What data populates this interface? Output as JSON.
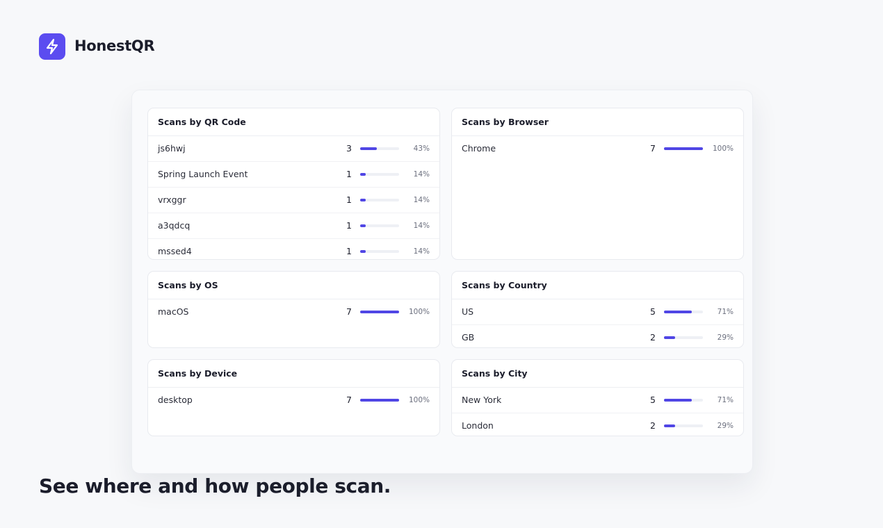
{
  "brand": {
    "name": "HonestQR"
  },
  "panels": [
    {
      "title": "Scans by QR Code",
      "rows": [
        {
          "label": "js6hwj",
          "count": 3,
          "percent": {
            "value": 43,
            "label": "43%"
          }
        },
        {
          "label": "Spring Launch Event",
          "count": 1,
          "percent": {
            "value": 14,
            "label": "14%"
          }
        },
        {
          "label": "vrxggr",
          "count": 1,
          "percent": {
            "value": 14,
            "label": "14%"
          }
        },
        {
          "label": "a3qdcq",
          "count": 1,
          "percent": {
            "value": 14,
            "label": "14%"
          }
        },
        {
          "label": "mssed4",
          "count": 1,
          "percent": {
            "value": 14,
            "label": "14%"
          }
        }
      ]
    },
    {
      "title": "Scans by Browser",
      "rows": [
        {
          "label": "Chrome",
          "count": 7,
          "percent": {
            "value": 100,
            "label": "100%"
          }
        }
      ]
    },
    {
      "title": "Scans by OS",
      "rows": [
        {
          "label": "macOS",
          "count": 7,
          "percent": {
            "value": 100,
            "label": "100%"
          }
        }
      ]
    },
    {
      "title": "Scans by Country",
      "rows": [
        {
          "label": "US",
          "count": 5,
          "percent": {
            "value": 71,
            "label": "71%"
          }
        },
        {
          "label": "GB",
          "count": 2,
          "percent": {
            "value": 29,
            "label": "29%"
          }
        }
      ]
    },
    {
      "title": "Scans by Device",
      "rows": [
        {
          "label": "desktop",
          "count": 7,
          "percent": {
            "value": 100,
            "label": "100%"
          }
        }
      ]
    },
    {
      "title": "Scans by City",
      "rows": [
        {
          "label": "New York",
          "count": 5,
          "percent": {
            "value": 71,
            "label": "71%"
          }
        },
        {
          "label": "London",
          "count": 2,
          "percent": {
            "value": 29,
            "label": "29%"
          }
        }
      ]
    }
  ],
  "tagline": "See where and how people scan."
}
